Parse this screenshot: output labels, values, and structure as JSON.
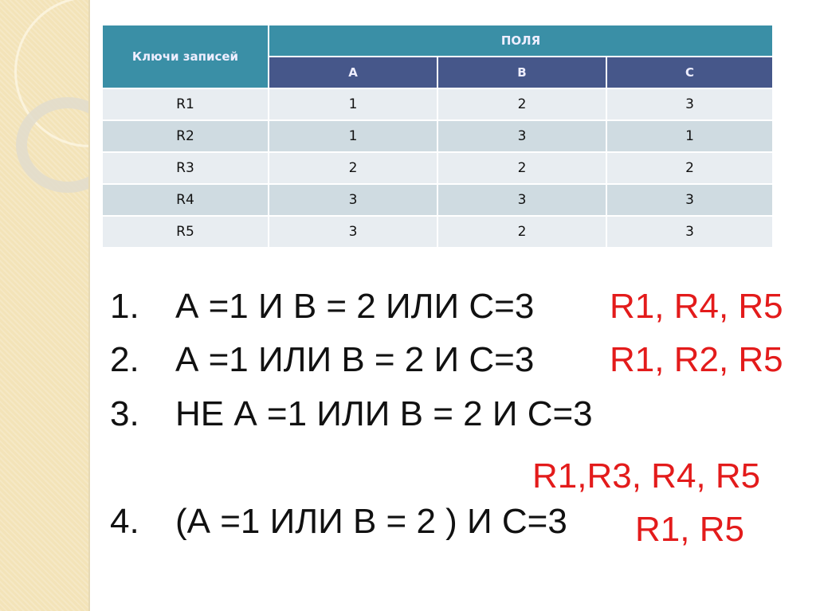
{
  "table": {
    "key_header": "Ключи записей",
    "fields_header": "ПОЛЯ",
    "columns": [
      "A",
      "B",
      "C"
    ],
    "rows": [
      {
        "key": "R1",
        "values": [
          "1",
          "2",
          "3"
        ]
      },
      {
        "key": "R2",
        "values": [
          "1",
          "3",
          "1"
        ]
      },
      {
        "key": "R3",
        "values": [
          "2",
          "2",
          "2"
        ]
      },
      {
        "key": "R4",
        "values": [
          "3",
          "3",
          "3"
        ]
      },
      {
        "key": "R5",
        "values": [
          "3",
          "2",
          "3"
        ]
      }
    ]
  },
  "questions": [
    {
      "num": "1.",
      "text": "А =1 И В = 2 ИЛИ С=3",
      "answer": "R1, R4, R5"
    },
    {
      "num": "2.",
      "text": "А =1 ИЛИ  В = 2 И С=3",
      "answer": "R1, R2, R5"
    },
    {
      "num": "3.",
      "text": "НЕ А =1 ИЛИ В = 2 И С=3",
      "answer": "R1,R3, R4, R5"
    },
    {
      "num": "4.",
      "text": "(А =1 ИЛИ В = 2 ) И С=3",
      "answer": "R1, R5"
    }
  ],
  "colors": {
    "header_teal": "#3a8fa6",
    "header_blue": "#46578a",
    "answer_red": "#e31b1b"
  }
}
